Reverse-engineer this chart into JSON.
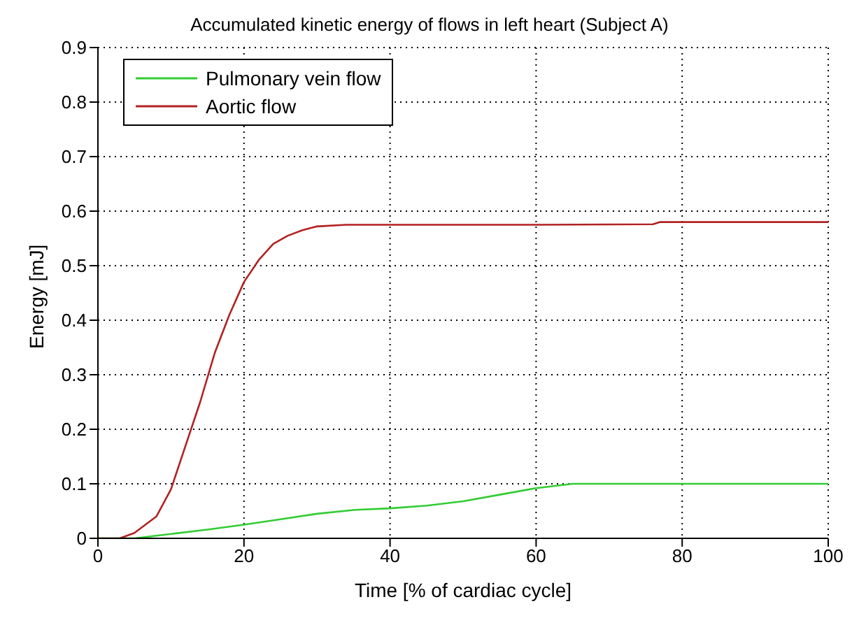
{
  "chart_data": {
    "type": "line",
    "title": "Accumulated kinetic energy of flows in left heart (Subject A)",
    "xlabel": "Time [% of cardiac cycle]",
    "ylabel": "Energy [mJ]",
    "series": [
      {
        "name": "Pulmonary vein flow",
        "color": "#33cc33",
        "x": [
          0,
          5,
          10,
          15,
          20,
          25,
          30,
          35,
          40,
          45,
          50,
          55,
          60,
          65,
          70,
          80,
          100
        ],
        "values": [
          0,
          0,
          0.008,
          0.016,
          0.025,
          0.035,
          0.045,
          0.052,
          0.055,
          0.06,
          0.068,
          0.08,
          0.092,
          0.1,
          0.1,
          0.1,
          0.1
        ]
      },
      {
        "name": "Aortic flow",
        "color": "#b22222",
        "x": [
          0,
          3,
          5,
          8,
          10,
          12,
          14,
          16,
          18,
          20,
          22,
          24,
          26,
          28,
          30,
          34,
          40,
          60,
          76,
          77,
          100
        ],
        "values": [
          0,
          0,
          0.01,
          0.04,
          0.09,
          0.17,
          0.25,
          0.34,
          0.41,
          0.47,
          0.51,
          0.54,
          0.555,
          0.565,
          0.572,
          0.575,
          0.575,
          0.575,
          0.576,
          0.58,
          0.58
        ]
      }
    ],
    "xlim": [
      0,
      100
    ],
    "xticks": [
      0,
      20,
      40,
      60,
      80,
      100
    ],
    "ylim": [
      0,
      0.9
    ],
    "yticks": [
      0,
      0.1,
      0.2,
      0.3,
      0.4,
      0.5,
      0.6,
      0.7,
      0.8,
      0.9
    ],
    "grid": true,
    "legend": "top left",
    "marker": "none",
    "line_style": "solid"
  }
}
